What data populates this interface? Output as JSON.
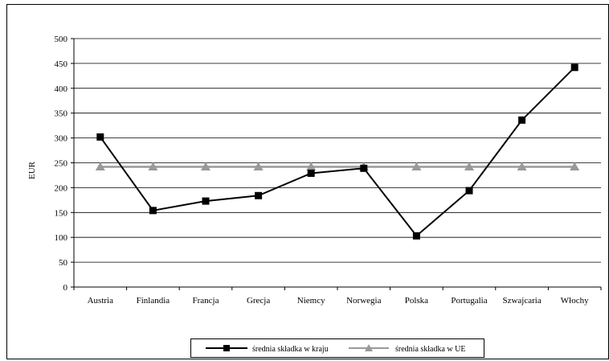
{
  "chart_data": {
    "type": "line",
    "title": "",
    "xlabel": "",
    "ylabel": "EUR",
    "ylim": [
      0,
      500
    ],
    "yticks": [
      0,
      50,
      100,
      150,
      200,
      250,
      300,
      350,
      400,
      450,
      500
    ],
    "grid": true,
    "legend_position": "bottom",
    "categories": [
      "Austria",
      "Finlandia",
      "Francja",
      "Grecja",
      "Niemcy",
      "Norwegia",
      "Polska",
      "Portugalia",
      "Szwajcaria",
      "Włochy"
    ],
    "series": [
      {
        "name": "średnia składka w kraju",
        "marker": "square",
        "color": "#000000",
        "values": [
          302,
          154,
          173,
          184,
          229,
          239,
          103,
          194,
          336,
          442
        ]
      },
      {
        "name": "średnia składka w UE",
        "marker": "triangle",
        "color": "#999999",
        "values": [
          242,
          242,
          242,
          242,
          242,
          242,
          242,
          242,
          242,
          242
        ]
      }
    ]
  }
}
